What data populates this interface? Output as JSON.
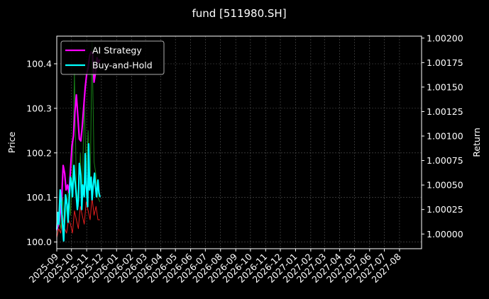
{
  "chart_data": {
    "type": "line",
    "title": "fund [511980.SH]",
    "ylabel_left": "Price",
    "ylabel_right": "Return",
    "ylim_left": [
      99.985,
      100.462
    ],
    "ylim_right": [
      0.99985,
      1.00202
    ],
    "yticks_left": [
      "100.0",
      "100.1",
      "100.2",
      "100.3",
      "100.4"
    ],
    "yticks_right": [
      "1.00000",
      "1.00025",
      "1.00050",
      "1.00075",
      "1.00100",
      "1.00125",
      "1.00150",
      "1.00175",
      "1.00200"
    ],
    "x_ticks": [
      "2025-09",
      "2025-10",
      "2025-11",
      "2025-12",
      "2026-01",
      "2026-02",
      "2026-03",
      "2026-04",
      "2026-05",
      "2026-06",
      "2026-07",
      "2026-08",
      "2026-09",
      "2026-10",
      "2026-11",
      "2026-12",
      "2027-01",
      "2027-02",
      "2027-03",
      "2027-04",
      "2027-05",
      "2027-06",
      "2027-07",
      "2027-08"
    ],
    "xlim": [
      "2025-09-01",
      "2027-09-15"
    ],
    "grid": true,
    "legend_position": "top-left",
    "series": [
      {
        "name": "AI Strategy",
        "axis": "right",
        "color": "#ff00ff",
        "x": [
          "2025-09-01",
          "2025-09-06",
          "2025-09-11",
          "2025-09-14",
          "2025-09-17",
          "2025-09-20",
          "2025-09-23",
          "2025-09-26",
          "2025-09-29",
          "2025-10-02",
          "2025-10-05",
          "2025-10-08",
          "2025-10-11",
          "2025-10-14",
          "2025-10-17",
          "2025-10-20",
          "2025-10-23",
          "2025-10-26",
          "2025-10-29",
          "2025-11-01",
          "2025-11-04",
          "2025-11-07",
          "2025-11-10",
          "2025-11-13",
          "2025-11-16",
          "2025-11-19",
          "2025-11-22",
          "2025-11-25",
          "2025-11-28"
        ],
        "values": [
          1.00004,
          1.00012,
          1.00036,
          1.0007,
          1.00062,
          1.00045,
          1.0005,
          1.00042,
          1.00065,
          1.0009,
          1.001,
          1.00125,
          1.00142,
          1.0012,
          1.00097,
          1.00095,
          1.0011,
          1.0013,
          1.0015,
          1.00163,
          1.0017,
          1.00182,
          1.00186,
          1.00184,
          1.00155,
          1.00165,
          1.0018,
          1.00175,
          1.00178
        ]
      },
      {
        "name": "Buy-and-Hold",
        "axis": "right",
        "color": "#00ffff",
        "x": [
          "2025-09-01",
          "2025-09-03",
          "2025-09-05",
          "2025-09-08",
          "2025-09-10",
          "2025-09-12",
          "2025-09-15",
          "2025-09-17",
          "2025-09-19",
          "2025-09-22",
          "2025-09-24",
          "2025-09-26",
          "2025-09-29",
          "2025-10-01",
          "2025-10-03",
          "2025-10-06",
          "2025-10-08",
          "2025-10-10",
          "2025-10-13",
          "2025-10-15",
          "2025-10-17",
          "2025-10-20",
          "2025-10-22",
          "2025-10-24",
          "2025-10-27",
          "2025-10-29",
          "2025-10-31",
          "2025-11-03",
          "2025-11-05",
          "2025-11-07",
          "2025-11-10",
          "2025-11-12",
          "2025-11-14",
          "2025-11-17",
          "2025-11-19",
          "2025-11-21",
          "2025-11-24",
          "2025-11-26",
          "2025-11-28"
        ],
        "values": [
          1.00005,
          1.00022,
          1.0001,
          1.00045,
          1.00035,
          1.00015,
          0.99993,
          1.0002,
          1.0004,
          1.0003,
          1.00012,
          1.00034,
          1.00058,
          1.00052,
          1.00038,
          1.0007,
          1.00055,
          1.00045,
          1.00025,
          1.00035,
          1.00072,
          1.0006,
          1.00025,
          1.0005,
          1.00038,
          1.00082,
          1.0005,
          1.00028,
          1.00092,
          1.00045,
          1.00058,
          1.00035,
          1.00048,
          1.00062,
          1.00048,
          1.00038,
          1.00055,
          1.00042,
          1.00038
        ]
      },
      {
        "name": "",
        "axis": "left",
        "color": "#ff2222",
        "x": [
          "2025-09-01",
          "2025-09-05",
          "2025-09-09",
          "2025-09-13",
          "2025-09-17",
          "2025-09-21",
          "2025-09-25",
          "2025-09-29",
          "2025-10-03",
          "2025-10-07",
          "2025-10-11",
          "2025-10-15",
          "2025-10-19",
          "2025-10-23",
          "2025-10-27",
          "2025-10-31",
          "2025-11-04",
          "2025-11-08",
          "2025-11-12",
          "2025-11-16",
          "2025-11-20",
          "2025-11-24",
          "2025-11-28"
        ],
        "values": [
          100.01,
          100.03,
          100.02,
          100.06,
          100.03,
          100.02,
          100.05,
          100.04,
          100.02,
          100.07,
          100.05,
          100.03,
          100.08,
          100.06,
          100.04,
          100.09,
          100.07,
          100.05,
          100.1,
          100.06,
          100.08,
          100.05,
          100.05
        ]
      },
      {
        "name": "",
        "axis": "left",
        "color": "#1a8f1a",
        "x": [
          "2025-09-01",
          "2025-09-05",
          "2025-09-09",
          "2025-09-13",
          "2025-09-17",
          "2025-09-21",
          "2025-09-25",
          "2025-09-29",
          "2025-10-03",
          "2025-10-07",
          "2025-10-11",
          "2025-10-15",
          "2025-10-19",
          "2025-10-23",
          "2025-10-27",
          "2025-10-31",
          "2025-11-04",
          "2025-11-08",
          "2025-11-12",
          "2025-11-16",
          "2025-11-20",
          "2025-11-24",
          "2025-11-28"
        ],
        "values": [
          100.02,
          100.05,
          100.03,
          100.1,
          100.04,
          100.08,
          100.12,
          100.06,
          100.15,
          100.38,
          100.12,
          100.08,
          100.2,
          100.1,
          100.32,
          100.15,
          100.25,
          100.12,
          100.45,
          100.18,
          100.15,
          100.1,
          100.09
        ]
      }
    ]
  }
}
